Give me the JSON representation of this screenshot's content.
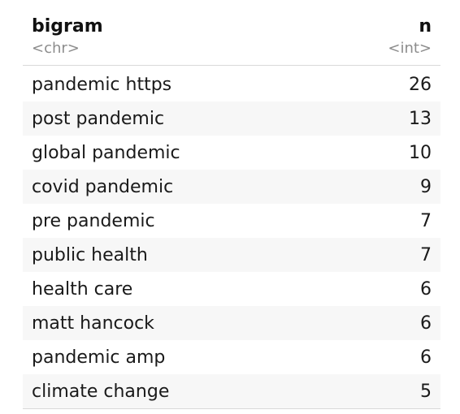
{
  "table": {
    "columns": [
      {
        "name": "bigram",
        "type": "<chr>"
      },
      {
        "name": "n",
        "type": "<int>"
      }
    ],
    "rows": [
      {
        "bigram": "pandemic https",
        "n": "26"
      },
      {
        "bigram": "post pandemic",
        "n": "13"
      },
      {
        "bigram": "global pandemic",
        "n": "10"
      },
      {
        "bigram": "covid pandemic",
        "n": "9"
      },
      {
        "bigram": "pre pandemic",
        "n": "7"
      },
      {
        "bigram": "public health",
        "n": "7"
      },
      {
        "bigram": "health care",
        "n": "6"
      },
      {
        "bigram": "matt hancock",
        "n": "6"
      },
      {
        "bigram": "pandemic amp",
        "n": "6"
      },
      {
        "bigram": "climate change",
        "n": "5"
      }
    ]
  }
}
